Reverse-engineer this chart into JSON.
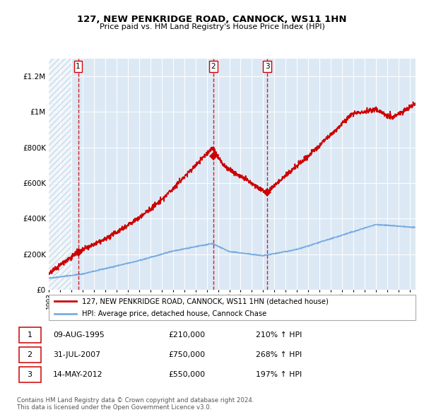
{
  "title": "127, NEW PENKRIDGE ROAD, CANNOCK, WS11 1HN",
  "subtitle": "Price paid vs. HM Land Registry's House Price Index (HPI)",
  "legend_line1": "127, NEW PENKRIDGE ROAD, CANNOCK, WS11 1HN (detached house)",
  "legend_line2": "HPI: Average price, detached house, Cannock Chase",
  "footer1": "Contains HM Land Registry data © Crown copyright and database right 2024.",
  "footer2": "This data is licensed under the Open Government Licence v3.0.",
  "transactions": [
    {
      "num": 1,
      "date": "09-AUG-1995",
      "price": 210000,
      "hpi_pct": "210%",
      "year": 1995.6
    },
    {
      "num": 2,
      "date": "31-JUL-2007",
      "price": 750000,
      "hpi_pct": "268%",
      "year": 2007.58
    },
    {
      "num": 3,
      "date": "14-MAY-2012",
      "price": 550000,
      "hpi_pct": "197%",
      "year": 2012.37
    }
  ],
  "hpi_color": "#7aade0",
  "price_color": "#cc0000",
  "bg_color": "#dce9f5",
  "ylim": [
    0,
    1300000
  ],
  "yticks": [
    0,
    200000,
    400000,
    600000,
    800000,
    1000000,
    1200000
  ],
  "xlim_start": 1993.0,
  "xlim_end": 2025.5,
  "hatch_end": 1995.0
}
